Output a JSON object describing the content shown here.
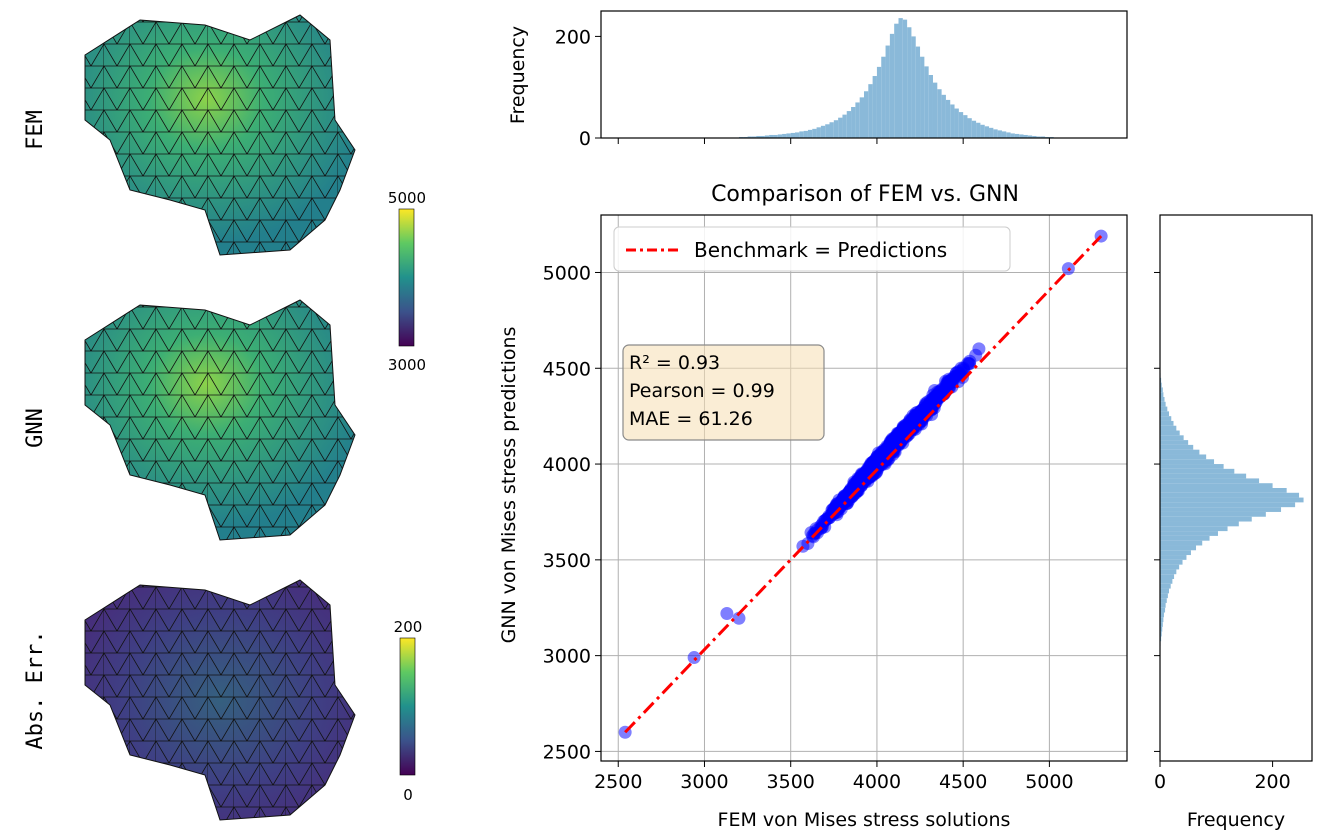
{
  "panels": {
    "row_labels": [
      "FEM",
      "GNN",
      "Abs. Err."
    ],
    "stress_colorbar": {
      "max_label": "5000",
      "min_label": "3000",
      "range": [
        3000,
        5000
      ]
    },
    "error_colorbar": {
      "max_label": "200",
      "min_label": "0",
      "range": [
        0,
        200
      ]
    }
  },
  "colors": {
    "scatter": "#0000ff",
    "benchmark": "#ff0000",
    "hist": "#8ab9d9",
    "grid": "#b0b0b0",
    "mesh_dark": "#2a7a8c",
    "mesh_mid": "#2ba585",
    "mesh_light": "#8cd24a",
    "error_dark": "#3e2a77",
    "error_mid": "#3b5b8e"
  },
  "chart_data": [
    {
      "id": "scatter",
      "type": "scatter",
      "title": "Comparison of FEM vs. GNN",
      "xlabel": "FEM von Mises stress solutions",
      "ylabel": "GNN von Mises stress predictions",
      "xlim": [
        2400,
        5450
      ],
      "ylim": [
        2450,
        5300
      ],
      "xticks": [
        2500,
        3000,
        3500,
        4000,
        4500,
        5000
      ],
      "yticks": [
        2500,
        3000,
        3500,
        4000,
        4500,
        5000
      ],
      "grid": true,
      "legend": {
        "label": "Benchmark = Predictions",
        "position": "top-left"
      },
      "benchmark_line": [
        [
          2540,
          2600
        ],
        [
          5300,
          5190
        ]
      ],
      "stats": {
        "r2": "R² = 0.93",
        "pearson": "Pearson = 0.99",
        "mae": "MAE = 61.26"
      },
      "outlier_points": [
        [
          2540,
          2600
        ],
        [
          2940,
          2990
        ],
        [
          3130,
          3220
        ],
        [
          3200,
          3195
        ],
        [
          5110,
          5020
        ],
        [
          5300,
          5190
        ]
      ],
      "cloud": {
        "x_range": [
          3250,
          5080
        ],
        "slope": 0.998,
        "intercept": 10,
        "spread": 55,
        "n": 1200
      }
    },
    {
      "id": "top-hist",
      "type": "bar",
      "title": "",
      "ylabel": "Frequency",
      "ylim": [
        0,
        250
      ],
      "yticks": [
        0,
        200
      ],
      "x_start": 3150,
      "bin_width": 25,
      "values": [
        1,
        1,
        2,
        2,
        3,
        3,
        4,
        4,
        5,
        6,
        6,
        7,
        8,
        9,
        10,
        11,
        13,
        14,
        16,
        18,
        21,
        24,
        27,
        31,
        35,
        40,
        46,
        53,
        61,
        70,
        80,
        92,
        106,
        122,
        140,
        160,
        182,
        205,
        225,
        236,
        233,
        218,
        200,
        180,
        160,
        141,
        124,
        109,
        96,
        85,
        75,
        66,
        58,
        51,
        45,
        39,
        34,
        30,
        26,
        23,
        20,
        17,
        15,
        13,
        11,
        9,
        8,
        7,
        6,
        5,
        4,
        3,
        3,
        2,
        2,
        1
      ]
    },
    {
      "id": "right-hist",
      "type": "bar",
      "orientation": "horizontal",
      "xlabel": "Frequency",
      "xlim": [
        0,
        270
      ],
      "xticks": [
        0,
        200
      ],
      "y_start": 3050,
      "bin_width": 25,
      "values": [
        1,
        2,
        3,
        4,
        5,
        6,
        7,
        9,
        10,
        12,
        14,
        16,
        19,
        22,
        25,
        29,
        34,
        40,
        47,
        55,
        64,
        75,
        88,
        103,
        120,
        140,
        163,
        188,
        215,
        240,
        255,
        247,
        225,
        200,
        176,
        153,
        132,
        113,
        96,
        82,
        70,
        59,
        50,
        42,
        35,
        29,
        24,
        20,
        16,
        13,
        10,
        8,
        6,
        5,
        3,
        2,
        1
      ]
    }
  ]
}
